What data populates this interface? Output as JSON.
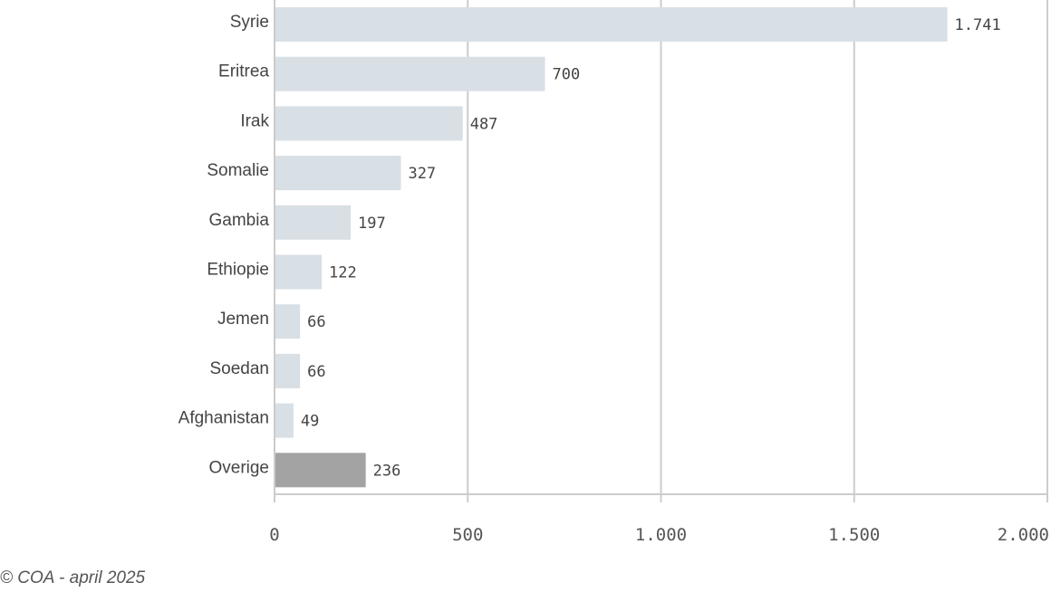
{
  "chart_data": {
    "type": "bar",
    "orientation": "horizontal",
    "categories": [
      "Syrie",
      "Eritrea",
      "Irak",
      "Somalie",
      "Gambia",
      "Ethiopie",
      "Jemen",
      "Soedan",
      "Afghanistan",
      "Overige"
    ],
    "values": [
      1741,
      700,
      487,
      327,
      197,
      122,
      66,
      66,
      49,
      236
    ],
    "value_labels": [
      "1.741",
      "700",
      "487",
      "327",
      "197",
      "122",
      "66",
      "66",
      "49",
      "236"
    ],
    "xlim": [
      0,
      2000
    ],
    "x_ticks": [
      0,
      500,
      1000,
      1500,
      2000
    ],
    "x_tick_labels": [
      "0",
      "500",
      "1.000",
      "1.500",
      "2.000"
    ],
    "grid": true,
    "colors": {
      "bar": "#d8dfe5",
      "highlight": "#a3a3a3",
      "grid": "#cccccc"
    },
    "highlight_category": "Overige"
  },
  "footer": {
    "source": "© COA - april 2025"
  }
}
